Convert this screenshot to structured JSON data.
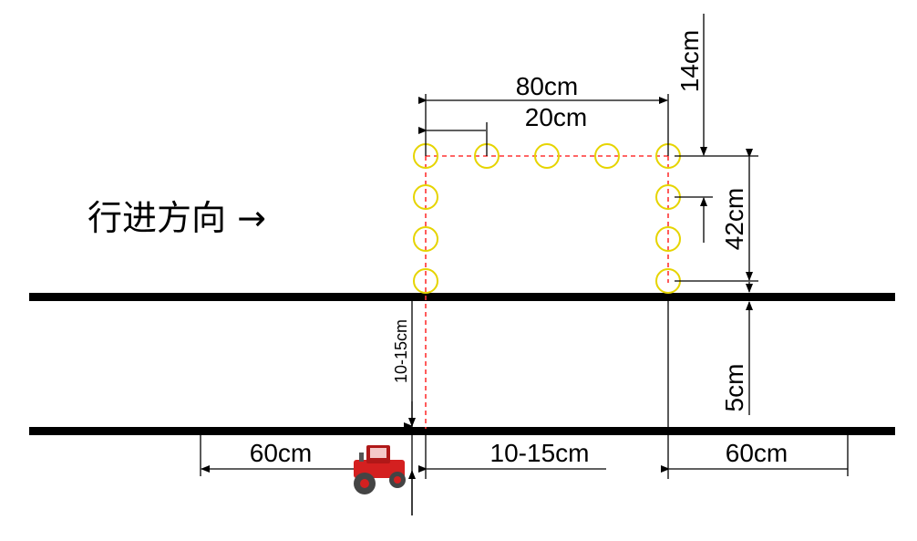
{
  "labels": {
    "direction": "行进方向 →",
    "width_80": "80cm",
    "spacing_20": "20cm",
    "top_14": "14cm",
    "height_42": "42cm",
    "gap_5": "5cm",
    "left_vertical": "10-15cm",
    "bottom_left_60": "60cm",
    "bottom_mid": "10-15cm",
    "bottom_right_60": "60cm"
  },
  "colors": {
    "circle": "#e6d400",
    "dash": "#ff3333",
    "rail": "#000000",
    "tractor": "#d42020"
  },
  "icons": {
    "tractor": "tractor-icon"
  }
}
